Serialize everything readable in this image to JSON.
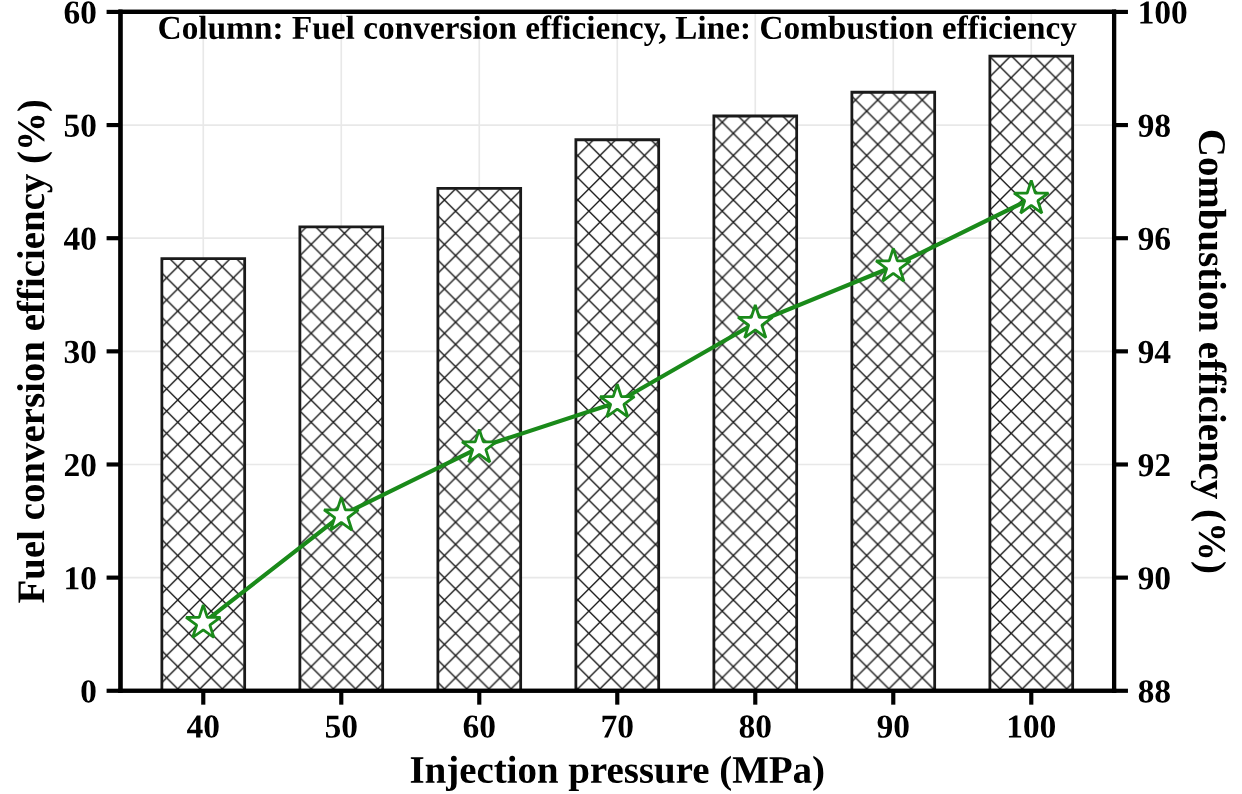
{
  "chart_data": {
    "type": "bar",
    "title": "Column: Fuel conversion efficiency, Line: Combustion efficiency",
    "xlabel": "Injection pressure (MPa)",
    "ylabel": "Fuel conversion efficiency (%)",
    "y2label": "Combustion efficiency (%)",
    "categories": [
      "40",
      "50",
      "60",
      "70",
      "80",
      "90",
      "100"
    ],
    "series": [
      {
        "color": "#1a1a1a",
        "values": [
          38.2,
          41.0,
          44.4,
          48.7,
          50.8,
          52.9,
          56.1
        ]
      },
      {
        "type": "line",
        "axis": "y2",
        "color": "#1a8a1a",
        "values": [
          89.2,
          91.1,
          92.3,
          93.1,
          94.5,
          95.5,
          96.7
        ]
      }
    ],
    "ylim": [
      0,
      60
    ],
    "yticks": [
      0,
      10,
      20,
      30,
      40,
      50,
      60
    ],
    "y2lim": [
      88,
      100
    ],
    "y2ticks": [
      88,
      90,
      92,
      94,
      96,
      98,
      100
    ],
    "grid": true,
    "marker": "star",
    "line_style": "solid"
  }
}
